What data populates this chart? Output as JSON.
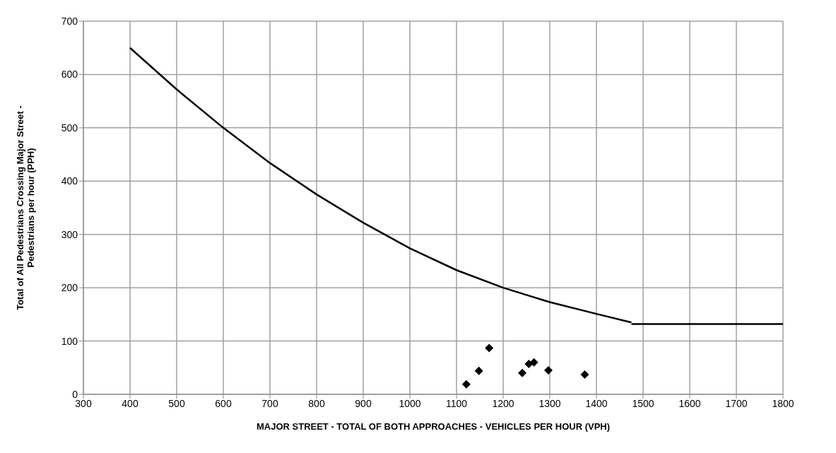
{
  "chart_data": {
    "type": "line",
    "xlabel": "MAJOR STREET - TOTAL OF BOTH APPROACHES - VEHICLES PER HOUR (VPH)",
    "ylabel": "Total of All Pedestrians Crossing Major Street -\nPedestrians per hour (PPH)",
    "xlim": [
      300,
      1800
    ],
    "xticks": [
      300,
      400,
      500,
      600,
      700,
      800,
      900,
      1000,
      1100,
      1200,
      1300,
      1400,
      1500,
      1600,
      1700,
      1800
    ],
    "ylim": [
      0,
      700
    ],
    "yticks": [
      0,
      100,
      200,
      300,
      400,
      500,
      600,
      700
    ],
    "grid": true,
    "series": [
      {
        "color": "#000000",
        "line_style": "solid",
        "marker": "none",
        "x": [
          400,
          500,
          600,
          700,
          800,
          900,
          1000,
          1100,
          1200,
          1300,
          1400,
          1475
        ],
        "values": [
          650,
          572,
          500,
          434,
          375,
          322,
          274,
          233,
          200,
          173,
          151,
          135
        ]
      },
      {
        "color": "#000000",
        "line_style": "solid",
        "marker": "none",
        "x": [
          1475,
          1800
        ],
        "values": [
          132,
          132
        ]
      },
      {
        "type": "scatter",
        "color": "#000000",
        "marker": "diamond",
        "x": [
          1121,
          1148,
          1170,
          1241,
          1255,
          1266,
          1297,
          1375
        ],
        "values": [
          19,
          44,
          87,
          40,
          57,
          60,
          45,
          37
        ]
      }
    ]
  }
}
